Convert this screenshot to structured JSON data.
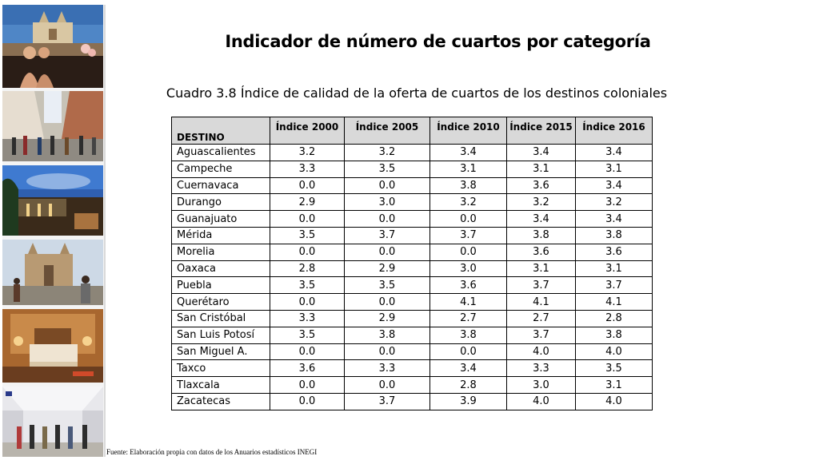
{
  "title": "Indicador de número de cuartos por categoría",
  "subtitle": "Cuadro 3.8 Índice de calidad de la oferta de cuartos de los destinos coloniales",
  "table": {
    "headers": [
      "DESTINO",
      "Índice 2000",
      "Índice 2005",
      "Índice 2010",
      "Índice 2015",
      "Índice 2016"
    ],
    "rows": [
      {
        "destino": "Aguascalientes",
        "values": [
          "3.2",
          "3.2",
          "3.4",
          "3.4",
          "3.4"
        ]
      },
      {
        "destino": "Campeche",
        "values": [
          "3.3",
          "3.5",
          "3.1",
          "3.1",
          "3.1"
        ]
      },
      {
        "destino": "Cuernavaca",
        "values": [
          "0.0",
          "0.0",
          "3.8",
          "3.6",
          "3.4"
        ]
      },
      {
        "destino": "Durango",
        "values": [
          "2.9",
          "3.0",
          "3.2",
          "3.2",
          "3.2"
        ]
      },
      {
        "destino": "Guanajuato",
        "values": [
          "0.0",
          "0.0",
          "0.0",
          "3.4",
          "3.4"
        ]
      },
      {
        "destino": "Mérida",
        "values": [
          "3.5",
          "3.7",
          "3.7",
          "3.8",
          "3.8"
        ]
      },
      {
        "destino": "Morelia",
        "values": [
          "0.0",
          "0.0",
          "0.0",
          "3.6",
          "3.6"
        ]
      },
      {
        "destino": "Oaxaca",
        "values": [
          "2.8",
          "2.9",
          "3.0",
          "3.1",
          "3.1"
        ]
      },
      {
        "destino": "Puebla",
        "values": [
          "3.5",
          "3.5",
          "3.6",
          "3.7",
          "3.7"
        ]
      },
      {
        "destino": "Querétaro",
        "values": [
          "0.0",
          "0.0",
          "4.1",
          "4.1",
          "4.1"
        ]
      },
      {
        "destino": "San Cristóbal",
        "values": [
          "3.3",
          "2.9",
          "2.7",
          "2.7",
          "2.8"
        ]
      },
      {
        "destino": "San Luis Potosí",
        "values": [
          "3.5",
          "3.8",
          "3.8",
          "3.7",
          "3.8"
        ]
      },
      {
        "destino": "San Miguel A.",
        "values": [
          "0.0",
          "0.0",
          "0.0",
          "4.0",
          "4.0"
        ]
      },
      {
        "destino": "Taxco",
        "values": [
          "3.6",
          "3.3",
          "3.4",
          "3.3",
          "3.5"
        ]
      },
      {
        "destino": "Tlaxcala",
        "values": [
          "0.0",
          "0.0",
          "2.8",
          "3.0",
          "3.1"
        ]
      },
      {
        "destino": "Zacatecas",
        "values": [
          "0.0",
          "3.7",
          "3.9",
          "4.0",
          "4.0"
        ]
      }
    ]
  },
  "source": "Fuente: Elaboración propia con datos de los Anuarios estadísticos INEGI",
  "photos": [
    {
      "name": "colonial-church-pool-photo"
    },
    {
      "name": "pedestrian-street-photo"
    },
    {
      "name": "night-plaza-photo"
    },
    {
      "name": "cathedral-square-photo"
    },
    {
      "name": "hotel-room-photo"
    },
    {
      "name": "shopping-corridor-photo"
    }
  ]
}
